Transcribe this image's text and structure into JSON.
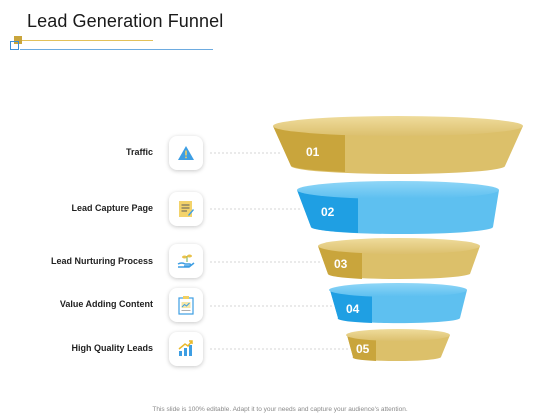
{
  "title": "Lead Generation Funnel",
  "footer": "This slide is 100% editable. Adapt it to your needs and capture your audience's attention.",
  "stages": [
    {
      "number": "01",
      "label": "Traffic",
      "icon": "warning-icon",
      "color": "gold"
    },
    {
      "number": "02",
      "label": "Lead Capture Page",
      "icon": "document-icon",
      "color": "blue"
    },
    {
      "number": "03",
      "label": "Lead Nurturing Process",
      "icon": "hand-plant-icon",
      "color": "gold"
    },
    {
      "number": "04",
      "label": "Value Adding Content",
      "icon": "clipboard-chart-icon",
      "color": "blue"
    },
    {
      "number": "05",
      "label": "High Quality Leads",
      "icon": "growth-chart-icon",
      "color": "gold"
    }
  ],
  "colors": {
    "gold_top": "#e6cc7a",
    "gold_light": "#dcc06a",
    "gold_dark": "#c9a53c",
    "blue_top": "#6cc6f2",
    "blue_light": "#5ec0f0",
    "blue_dark": "#1f9fe3",
    "accent_line": "#e2c15a",
    "rule_line": "#3c8fd6"
  }
}
